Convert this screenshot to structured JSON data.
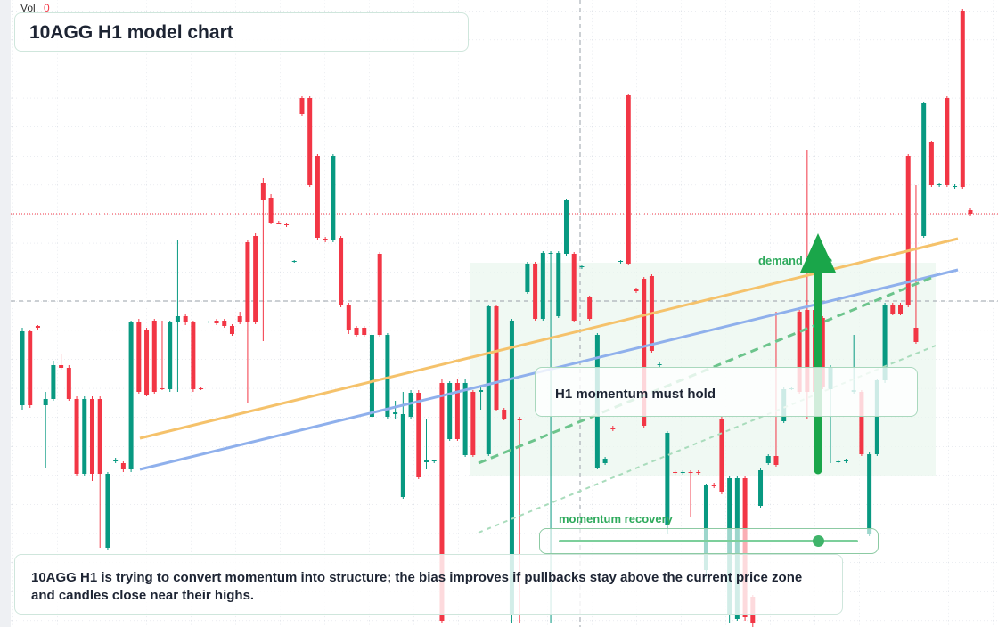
{
  "chart_data": {
    "type": "candlestick",
    "title": "10AGG H1 model chart",
    "volume_label": "Vol",
    "volume_value": 0,
    "annotations": [
      "demand zone",
      "H1 momentum must hold",
      "momentum recovery"
    ],
    "description": "10AGG H1 is trying to convert momentum into structure; the bias improves if pullbacks stay above the current price zone and candles close near their highs.",
    "up_color": "#089981",
    "down_color": "#f23645",
    "ylim": [
      0,
      704
    ],
    "open": [
      249,
      332,
      338,
      249,
      256,
      294,
      291,
      256,
      172,
      256,
      256,
      89,
      186,
      184,
      177,
      342,
      334,
      344,
      268,
      267,
      342,
      349,
      342,
      268,
      342,
      344,
      344,
      338,
      349,
      432,
      439,
      499,
      482,
      454,
      452,
      410,
      594,
      594,
      529,
      436,
      434,
      437,
      362,
      336,
      336,
      236,
      419,
      236,
      239,
      146,
      236,
      263,
      185,
      186,
      274,
      211,
      274,
      193,
      264,
      264,
      194,
      360,
      244,
      14,
      234,
      376,
      408,
      346,
      419,
      349,
      419,
      419,
      404,
      370,
      179,
      184,
      224,
      410,
      597,
      379,
      391,
      394,
      294,
      114,
      174,
      173,
      174,
      174,
      64,
      160,
      234,
      14,
      9,
      167,
      34,
      136,
      184,
      192,
      231,
      267,
      354,
      356,
      356,
      347,
      267,
      185,
      186,
      264,
      264,
      104,
      194,
      277,
      362,
      362,
      529,
      336,
      439,
      544,
      496,
      594,
      494,
      692,
      468
    ],
    "high": [
      336,
      334,
      339,
      264,
      299,
      306,
      294,
      259,
      259,
      259,
      259,
      174,
      190,
      186,
      344,
      346,
      336,
      346,
      344,
      344,
      434,
      352,
      344,
      269,
      344,
      346,
      346,
      340,
      354,
      434,
      442,
      504,
      486,
      456,
      454,
      412,
      596,
      596,
      531,
      438,
      531,
      439,
      364,
      338,
      338,
      330,
      421,
      330,
      254,
      264,
      266,
      266,
      234,
      188,
      279,
      276,
      279,
      279,
      266,
      269,
      362,
      362,
      246,
      346,
      236,
      410,
      410,
      422,
      422,
      422,
      481,
      421,
      406,
      372,
      330,
      191,
      226,
      412,
      599,
      381,
      393,
      396,
      297,
      220,
      176,
      176,
      176,
      176,
      161,
      162,
      236,
      169,
      169,
      169,
      36,
      178,
      194,
      354,
      269,
      269,
      356,
      536,
      358,
      349,
      294,
      188,
      189,
      328,
      266,
      196,
      279,
      364,
      364,
      364,
      531,
      496,
      590,
      546,
      499,
      596,
      497,
      694,
      470
    ],
    "low": [
      244,
      246,
      334,
      179,
      254,
      289,
      254,
      169,
      169,
      164,
      89,
      86,
      184,
      174,
      174,
      262,
      259,
      262,
      266,
      264,
      264,
      339,
      264,
      266,
      341,
      339,
      336,
      327,
      340,
      252,
      340,
      321,
      452,
      452,
      449,
      409,
      574,
      494,
      435,
      432,
      432,
      359,
      329,
      326,
      326,
      234,
      326,
      234,
      234,
      144,
      234,
      166,
      177,
      184,
      4,
      209,
      209,
      191,
      191,
      244,
      192,
      242,
      232,
      4,
      4,
      374,
      344,
      344,
      4,
      347,
      417,
      342,
      402,
      344,
      177,
      182,
      220,
      408,
      406,
      375,
      223,
      308,
      292,
      104,
      171,
      171,
      124,
      171,
      54,
      156,
      149,
      4,
      7,
      7,
      0,
      134,
      182,
      180,
      229,
      266,
      262,
      234,
      262,
      267,
      184,
      184,
      184,
      262,
      192,
      102,
      192,
      274,
      350,
      350,
      359,
      318,
      437,
      494,
      494,
      494,
      492,
      492,
      462
    ],
    "close": [
      332,
      249,
      336,
      256,
      294,
      291,
      256,
      172,
      256,
      172,
      172,
      172,
      188,
      177,
      342,
      264,
      261,
      264,
      267,
      342,
      349,
      342,
      267,
      267,
      343,
      341,
      338,
      329,
      342,
      342,
      342,
      479,
      454,
      453,
      451,
      411,
      576,
      496,
      437,
      434,
      529,
      362,
      334,
      328,
      328,
      328,
      328,
      328,
      241,
      239,
      263,
      168,
      187,
      187,
      7,
      274,
      211,
      274,
      193,
      266,
      360,
      244,
      234,
      344,
      232,
      408,
      346,
      420,
      420,
      420,
      479,
      344,
      405,
      346,
      328,
      189,
      222,
      411,
      408,
      377,
      226,
      310,
      295,
      218,
      173,
      174,
      173,
      173,
      159,
      158,
      152,
      167,
      167,
      11,
      4,
      176,
      192,
      182,
      267,
      268,
      264,
      264,
      264,
      269,
      292,
      186,
      187,
      266,
      194,
      194,
      277,
      362,
      352,
      352,
      362,
      320,
      588,
      496,
      497,
      496,
      495,
      494,
      464
    ]
  }
}
